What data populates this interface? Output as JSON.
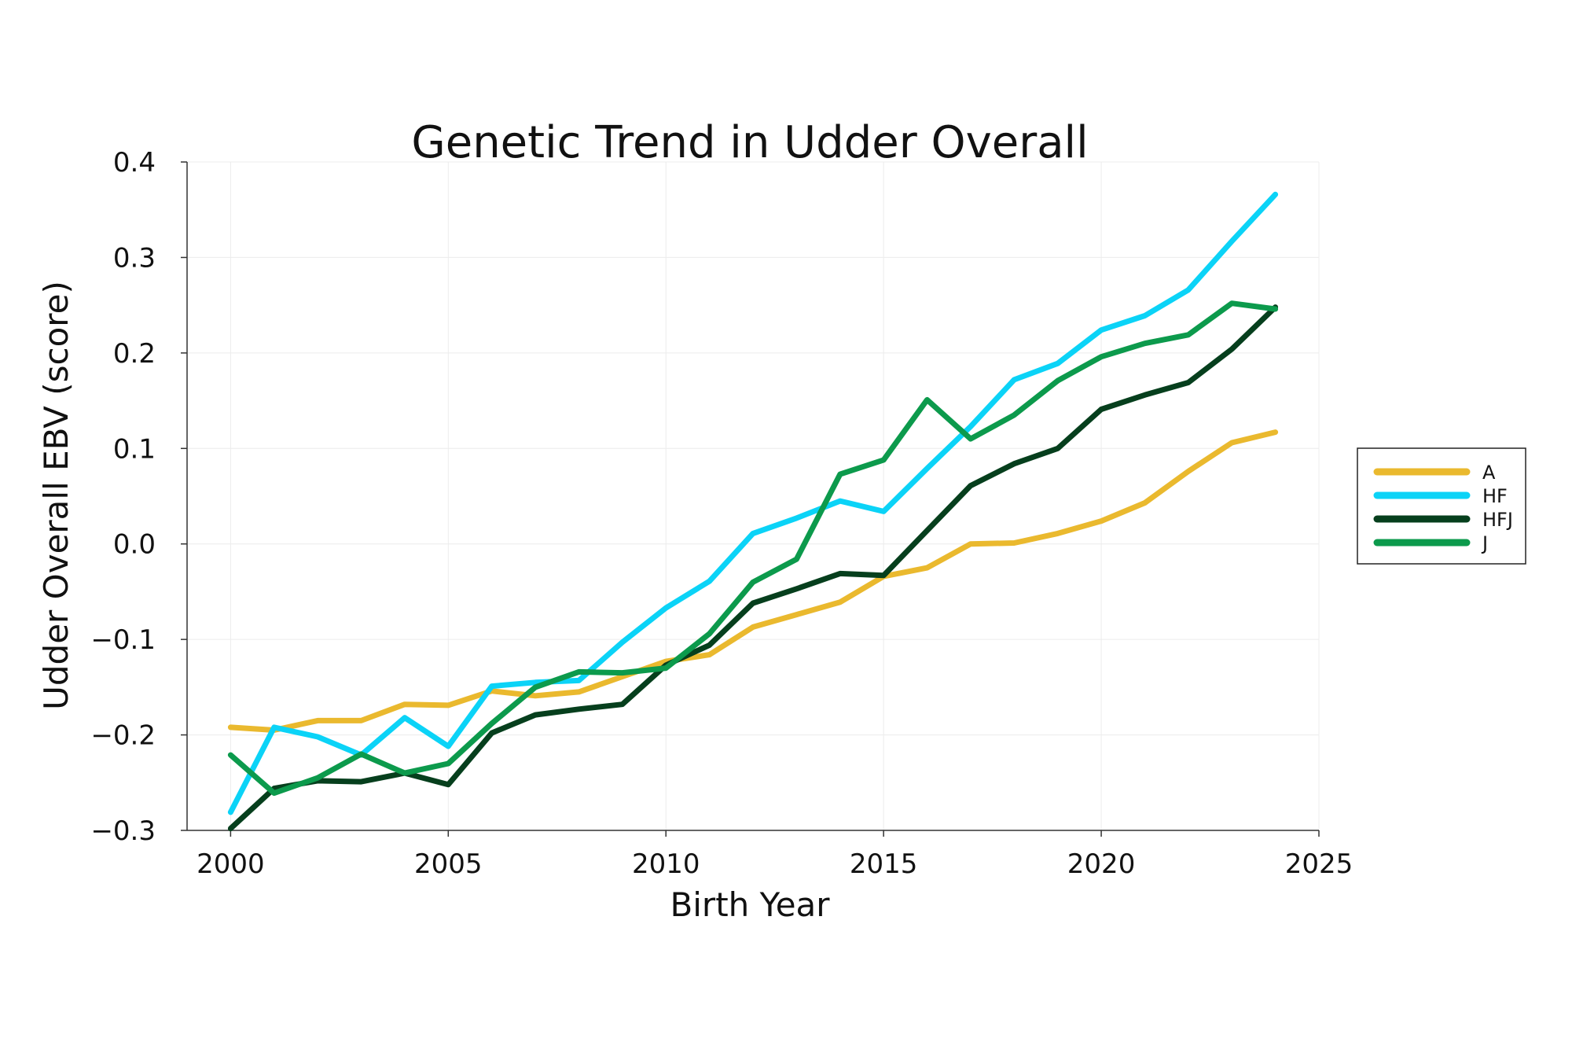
{
  "chart_data": {
    "type": "line",
    "title": "Genetic Trend in Udder Overall",
    "xlabel": "Birth Year",
    "ylabel": "Udder Overall EBV (score)",
    "xlim": [
      1999,
      2025
    ],
    "ylim": [
      -0.3,
      0.4
    ],
    "xticks": [
      2000,
      2005,
      2010,
      2015,
      2020,
      2025
    ],
    "xtick_labels": [
      "2000",
      "2005",
      "2010",
      "2015",
      "2020",
      "2025"
    ],
    "yticks": [
      -0.3,
      -0.2,
      -0.1,
      0.0,
      0.1,
      0.2,
      0.3,
      0.4
    ],
    "ytick_labels": [
      "−0.3",
      "−0.2",
      "−0.1",
      "0.0",
      "0.1",
      "0.2",
      "0.3",
      "0.4"
    ],
    "grid": true,
    "legend_position": "right",
    "x": [
      2000,
      2001,
      2002,
      2003,
      2004,
      2005,
      2006,
      2007,
      2008,
      2009,
      2010,
      2011,
      2012,
      2013,
      2014,
      2015,
      2016,
      2017,
      2018,
      2019,
      2020,
      2021,
      2022,
      2023,
      2024
    ],
    "series": [
      {
        "name": "A",
        "color": "#EAB92E",
        "values": [
          -0.192,
          -0.195,
          -0.185,
          -0.185,
          -0.168,
          -0.169,
          -0.154,
          -0.159,
          -0.155,
          -0.139,
          -0.123,
          -0.116,
          -0.087,
          -0.074,
          -0.061,
          -0.034,
          -0.025,
          0.0,
          0.001,
          0.011,
          0.024,
          0.043,
          0.076,
          0.106,
          0.117
        ]
      },
      {
        "name": "HF",
        "color": "#0BD3F7",
        "values": [
          -0.281,
          -0.192,
          -0.202,
          -0.221,
          -0.182,
          -0.212,
          -0.149,
          -0.145,
          -0.143,
          -0.103,
          -0.067,
          -0.039,
          0.011,
          0.027,
          0.045,
          0.034,
          0.079,
          0.123,
          0.172,
          0.189,
          0.224,
          0.239,
          0.266,
          0.317,
          0.366
        ]
      },
      {
        "name": "HFJ",
        "color": "#063F1D",
        "values": [
          -0.298,
          -0.256,
          -0.248,
          -0.249,
          -0.24,
          -0.252,
          -0.198,
          -0.179,
          -0.173,
          -0.168,
          -0.127,
          -0.106,
          -0.062,
          -0.047,
          -0.031,
          -0.033,
          0.014,
          0.061,
          0.084,
          0.1,
          0.141,
          0.156,
          0.169,
          0.204,
          0.248
        ]
      },
      {
        "name": "J",
        "color": "#0C9A4C",
        "values": [
          -0.221,
          -0.261,
          -0.245,
          -0.22,
          -0.24,
          -0.23,
          -0.188,
          -0.15,
          -0.134,
          -0.135,
          -0.13,
          -0.094,
          -0.04,
          -0.016,
          0.073,
          0.088,
          0.151,
          0.11,
          0.135,
          0.171,
          0.196,
          0.21,
          0.219,
          0.252,
          0.246
        ]
      }
    ]
  }
}
